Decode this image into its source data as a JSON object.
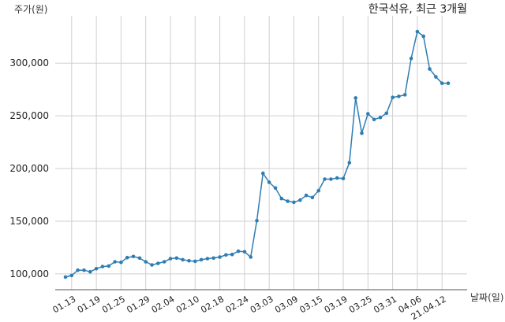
{
  "chart_data": {
    "type": "line",
    "title": "한국석유, 최근 3개월",
    "ylabel": "주가(원)",
    "xlabel": "날짜(일)",
    "ylim": [
      85000,
      345000
    ],
    "yticks": [
      100000,
      150000,
      200000,
      250000,
      300000
    ],
    "ytick_labels": [
      "100,000",
      "150,000",
      "200,000",
      "250,000",
      "300,000"
    ],
    "xtick_labels": [
      "01.13",
      "01.19",
      "01.25",
      "01.29",
      "02.04",
      "02.10",
      "02.18",
      "02.24",
      "03.03",
      "03.09",
      "03.15",
      "03.19",
      "03.25",
      "03.31",
      "04.06",
      "21.04.12"
    ],
    "grid": true,
    "series": [
      {
        "values": [
          97000,
          98500,
          103500,
          103500,
          102000,
          105000,
          107000,
          107500,
          111500,
          111000,
          115500,
          116500,
          115000,
          111500,
          108500,
          110000,
          111500,
          114500,
          115000,
          113500,
          112500,
          112000,
          113500,
          114500,
          115000,
          116000,
          118000,
          118500,
          121500,
          121000,
          116000,
          150500,
          195500,
          187000,
          181500,
          171500,
          169000,
          168000,
          170000,
          174500,
          172500,
          179000,
          190000,
          190000,
          191000,
          190500,
          205500,
          267000,
          233500,
          252000,
          246500,
          248500,
          252500,
          267500,
          268500,
          270000,
          304500,
          330000,
          325500,
          294500,
          287000,
          281000,
          281000
        ]
      }
    ]
  }
}
